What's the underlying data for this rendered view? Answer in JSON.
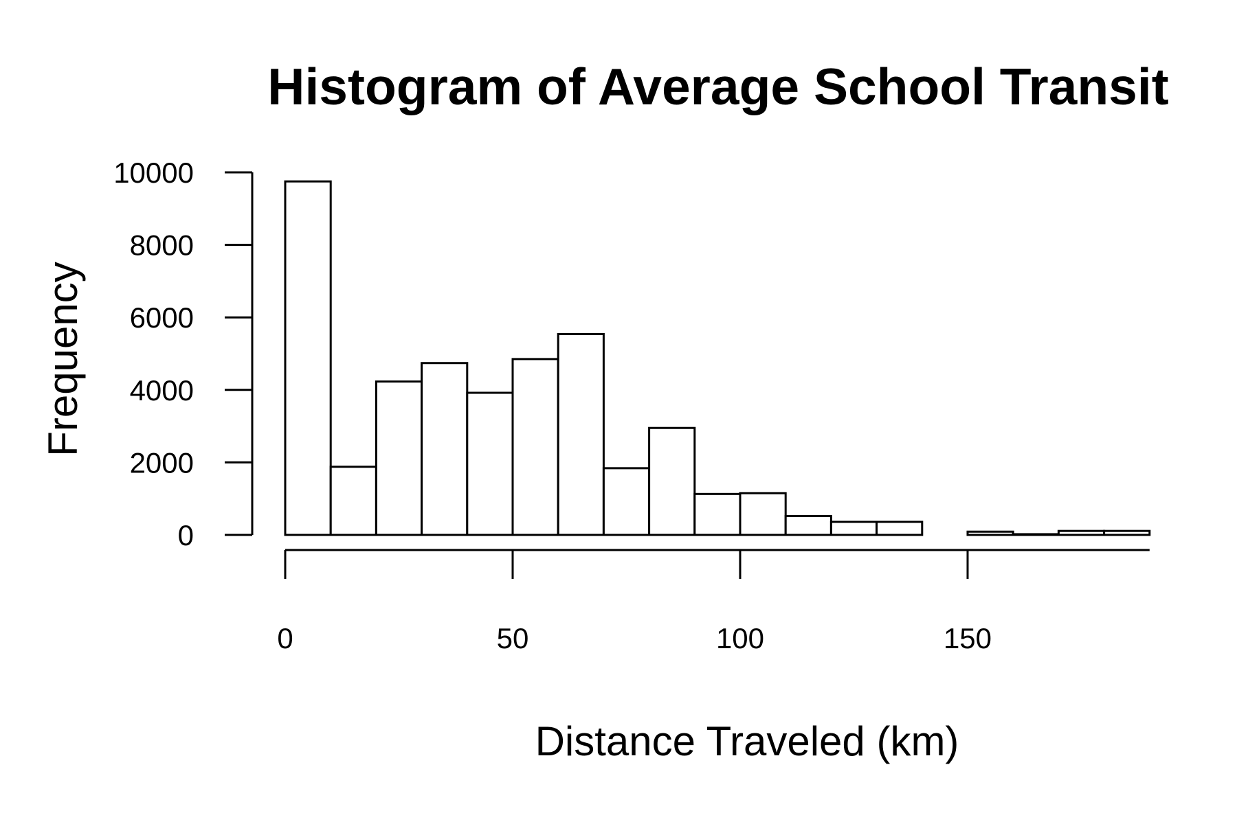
{
  "chart_data": {
    "type": "bar",
    "title": "Histogram of Average School Transit",
    "xlabel": "Distance Traveled (km)",
    "ylabel": "Frequency",
    "bin_width": 10,
    "bins": [
      {
        "start": 0,
        "end": 10,
        "count": 9750
      },
      {
        "start": 10,
        "end": 20,
        "count": 1880
      },
      {
        "start": 20,
        "end": 30,
        "count": 4230
      },
      {
        "start": 30,
        "end": 40,
        "count": 4740
      },
      {
        "start": 40,
        "end": 50,
        "count": 3920
      },
      {
        "start": 50,
        "end": 60,
        "count": 4850
      },
      {
        "start": 60,
        "end": 70,
        "count": 5540
      },
      {
        "start": 70,
        "end": 80,
        "count": 1840
      },
      {
        "start": 80,
        "end": 90,
        "count": 2950
      },
      {
        "start": 90,
        "end": 100,
        "count": 1130
      },
      {
        "start": 100,
        "end": 110,
        "count": 1150
      },
      {
        "start": 110,
        "end": 120,
        "count": 520
      },
      {
        "start": 120,
        "end": 130,
        "count": 360
      },
      {
        "start": 130,
        "end": 140,
        "count": 360
      },
      {
        "start": 140,
        "end": 150,
        "count": 0
      },
      {
        "start": 150,
        "end": 160,
        "count": 90
      },
      {
        "start": 160,
        "end": 170,
        "count": 20
      },
      {
        "start": 170,
        "end": 180,
        "count": 110
      },
      {
        "start": 180,
        "end": 190,
        "count": 110
      }
    ],
    "x_ticks": [
      0,
      50,
      100,
      150
    ],
    "x_tick_labels": [
      "0",
      "50",
      "100",
      "150"
    ],
    "y_ticks": [
      0,
      2000,
      4000,
      6000,
      8000,
      10000
    ],
    "y_tick_labels": [
      "0",
      "2000",
      "4000",
      "6000",
      "8000",
      "10000"
    ],
    "xlim": [
      0,
      190
    ],
    "ylim": [
      0,
      10000
    ],
    "grid": false,
    "legend": "none",
    "colors": {
      "bar_fill": "#ffffff",
      "bar_stroke": "#000000",
      "background": "#ffffff"
    }
  }
}
